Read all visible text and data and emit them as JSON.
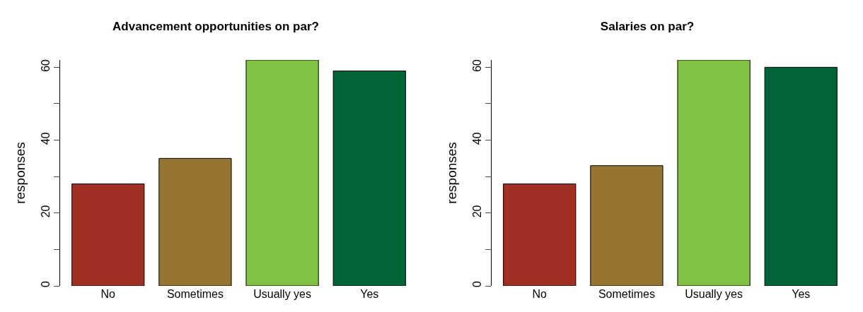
{
  "chart_data": [
    {
      "type": "bar",
      "title": "Advancement opportunities on par?",
      "ylabel": "responses",
      "categories": [
        "No",
        "Sometimes",
        "Usually yes",
        "Yes"
      ],
      "values": [
        28,
        35,
        62,
        59
      ],
      "colors": [
        "#a03024",
        "#967530",
        "#80c342",
        "#006437"
      ],
      "ylim": [
        0,
        62
      ],
      "yticks": [
        0,
        {
          "value": 10,
          "label": null
        },
        20,
        {
          "value": 30,
          "label": null
        },
        40,
        {
          "value": 50,
          "label": null
        },
        60
      ],
      "grid": false
    },
    {
      "type": "bar",
      "title": "Salaries on par?",
      "ylabel": "responses",
      "categories": [
        "No",
        "Sometimes",
        "Usually yes",
        "Yes"
      ],
      "values": [
        28,
        33,
        62,
        60
      ],
      "colors": [
        "#a03024",
        "#967530",
        "#80c342",
        "#006437"
      ],
      "ylim": [
        0,
        62
      ],
      "yticks": [
        0,
        {
          "value": 10,
          "label": null
        },
        20,
        {
          "value": 30,
          "label": null
        },
        40,
        {
          "value": 50,
          "label": null
        },
        60
      ],
      "grid": false
    }
  ]
}
